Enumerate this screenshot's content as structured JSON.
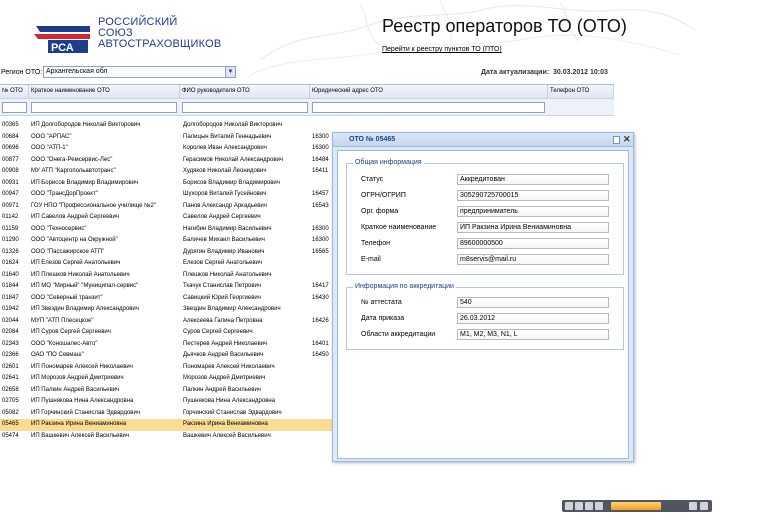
{
  "header": {
    "logo_lines": [
      "РОССИЙСКИЙ",
      "СОЮЗ",
      "АВТОСТРАХОВЩИКОВ"
    ],
    "logo_mark": "РСА",
    "title": "Реестр операторов ТО (ОТО)",
    "pto_link": "Перейти к реестру пунктов ТО (ПТО)",
    "region_label": "Регион ОТО:",
    "region_value": "Архангельская обл",
    "actual_label": "Дата актуализации:",
    "actual_value": "30.03.2012 10:03"
  },
  "grid": {
    "columns": [
      "№ ОТО",
      "Краткое наименование ОТО",
      "ФИО руководителя ОТО",
      "Юридический адрес ОТО",
      "Телефон ОТО"
    ],
    "rows": [
      {
        "no": "00365",
        "name": "ИП Долгобородов Николай Викторович",
        "head": "Долгобородов Николай Викторович",
        "addr": "",
        "selected": false
      },
      {
        "no": "00684",
        "name": "ООО \"АРПАС\"",
        "head": "Палицын Виталий Геннадьевич",
        "addr": "16300",
        "selected": false
      },
      {
        "no": "00696",
        "name": "ООО \"АТП-1\"",
        "head": "Королев Иван Александрович",
        "addr": "16300",
        "selected": false
      },
      {
        "no": "00877",
        "name": "ООО \"Онега-Ремсервис-Лес\"",
        "head": "Герасимов Николай Александрович",
        "addr": "16484",
        "selected": false
      },
      {
        "no": "00908",
        "name": "МУ АТП \"Каргопольавтотранс\"",
        "head": "Худяков Николай Леонидович",
        "addr": "16411",
        "selected": false
      },
      {
        "no": "00931",
        "name": "ИП Борисов Владимир Владимирович",
        "head": "Борисов Владимир Владимирович",
        "addr": "",
        "selected": false
      },
      {
        "no": "00947",
        "name": "ООО \"ТрансДорПроект\"",
        "head": "Шухоров Виталий Гусейнович",
        "addr": "16457",
        "selected": false
      },
      {
        "no": "00971",
        "name": "ГОУ НПО \"Профессиональное училище №2\"",
        "head": "Панов Александр Аркадьевич",
        "addr": "16543",
        "selected": false
      },
      {
        "no": "01142",
        "name": "ИП Савелов Андрей Сергеевич",
        "head": "Савелов Андрей Сергеевич",
        "addr": "",
        "selected": false
      },
      {
        "no": "01159",
        "name": "ООО \"Техносервис\"",
        "head": "Нагибин Владимир Васильевич",
        "addr": "16300",
        "selected": false
      },
      {
        "no": "01290",
        "name": "ООО \"Автоцентр на Окружной\"",
        "head": "Баличев Михаил Васильевич",
        "addr": "16300",
        "selected": false
      },
      {
        "no": "01326",
        "name": "ООО \"Пассажирское АТП\"",
        "head": "Дурягин Владимир Иванович",
        "addr": "16565",
        "selected": false
      },
      {
        "no": "01624",
        "name": "ИП Елезов Сергей Анатольевич",
        "head": "Елезов Сергей Анатольевич",
        "addr": "",
        "selected": false
      },
      {
        "no": "01640",
        "name": "ИП Плешков Николай Анатольевич",
        "head": "Плешков Николай Анатольевич",
        "addr": "",
        "selected": false
      },
      {
        "no": "01844",
        "name": "ИП МО \"Мирный\" \"Муниципал-сервис\"",
        "head": "Ткачук Станислав Петрович",
        "addr": "16417",
        "selected": false
      },
      {
        "no": "01847",
        "name": "ООО \"Северный транзит\"",
        "head": "Савицкий Юрий Георгиевич",
        "addr": "16430",
        "selected": false
      },
      {
        "no": "01942",
        "name": "ИП Звездин Владимир Александрович",
        "head": "Звездин Владимир Александрович",
        "addr": "",
        "selected": false
      },
      {
        "no": "02044",
        "name": "МУП \"АТП Плесецкое\"",
        "head": "Алексеева Галина Петровна",
        "addr": "16426",
        "selected": false
      },
      {
        "no": "02084",
        "name": "ИП Суров Сергей Сергеевич",
        "head": "Суров Сергей Сергеевич",
        "addr": "",
        "selected": false
      },
      {
        "no": "02343",
        "name": "ООО \"Коношалес-Авто\"",
        "head": "Пестерев Андрей Николаевич",
        "addr": "16401",
        "selected": false
      },
      {
        "no": "02366",
        "name": "ОАО \"ПО Севмаш\"",
        "head": "Дьячков Андрей Васильевич",
        "addr": "16450",
        "selected": false
      },
      {
        "no": "02601",
        "name": "ИП Пономарев Алексей Николаевич",
        "head": "Пономарев Алексей Николаевич",
        "addr": "",
        "selected": false
      },
      {
        "no": "02641",
        "name": "ИП Морозов Андрей Дмитриевич",
        "head": "Морозов Андрей Дмитриевич",
        "addr": "",
        "selected": false
      },
      {
        "no": "02658",
        "name": "ИП Палкин Андрей Васильевич",
        "head": "Палкин Андрей Васильевич",
        "addr": "",
        "selected": false
      },
      {
        "no": "02705",
        "name": "ИП Пушнякова Нина Александровна",
        "head": "Пушнякова Нина Александровна",
        "addr": "",
        "selected": false
      },
      {
        "no": "05082",
        "name": "ИП Горчинский Станислав Эдвардович",
        "head": "Горчинский Станислав Эдвардович",
        "addr": "",
        "selected": false
      },
      {
        "no": "05465",
        "name": "ИП Ракзина Ирина Вениаминовна",
        "head": "Ракзина Ирина Вениаминовна",
        "addr": "",
        "selected": true
      },
      {
        "no": "05474",
        "name": "ИП Вашкевич Алексей Васильевич",
        "head": "Вашкевич Алексей Васильевич",
        "addr": "",
        "selected": false
      }
    ]
  },
  "dialog": {
    "title": "ОТО № 05465",
    "general_legend": "Общая информация",
    "general_fields": [
      {
        "label": "Статус",
        "value": "Аккредитован"
      },
      {
        "label": "ОГРН/ОГРИП",
        "value": "305290725700015"
      },
      {
        "label": "Орг. форма",
        "value": "предприниматель"
      },
      {
        "label": "Краткое наименование",
        "value": "ИП Ракзина Ирина Вениаминовна"
      },
      {
        "label": "Телефон",
        "value": "89600000500"
      },
      {
        "label": "E-mail",
        "value": "m8servis@mail.ru"
      }
    ],
    "accr_legend": "Информация по аккредитации",
    "accr_fields": [
      {
        "label": "№ аттестата",
        "value": "540"
      },
      {
        "label": "Дата приказа",
        "value": "26.03.2012"
      },
      {
        "label": "Области аккредитации",
        "value": "M1, M2, M3, N1, L"
      }
    ]
  }
}
